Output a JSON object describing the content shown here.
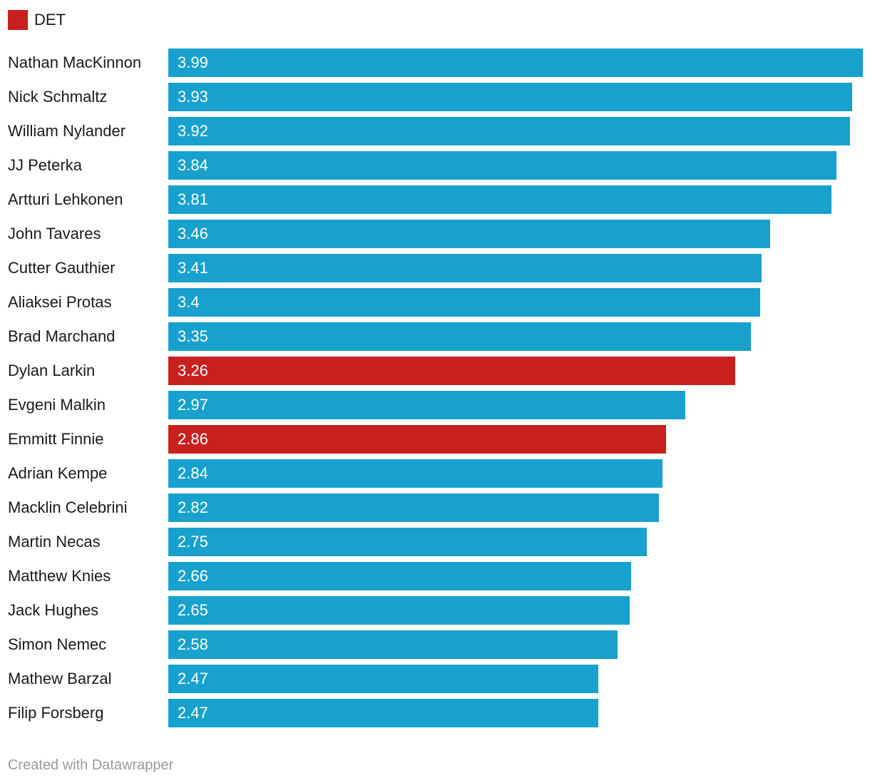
{
  "legend": {
    "label": "DET"
  },
  "footer": {
    "text": "Created with Datawrapper"
  },
  "colors": {
    "bar_default": "#18a1cd",
    "bar_highlight": "#c8201e",
    "label_text": "#1a1a1a",
    "value_text": "#ffffff",
    "footer_text": "#9a9a9a",
    "background": "#ffffff"
  },
  "chart_data": {
    "type": "bar",
    "orientation": "horizontal",
    "title": "",
    "legend_position": "top-left",
    "legend_entries": [
      {
        "label": "DET",
        "color": "#c8201e"
      }
    ],
    "grid": false,
    "xlim": [
      0,
      4.0
    ],
    "categories": [
      "Nathan MacKinnon",
      "Nick Schmaltz",
      "William Nylander",
      "JJ Peterka",
      "Artturi Lehkonen",
      "John Tavares",
      "Cutter Gauthier",
      "Aliaksei Protas",
      "Brad Marchand",
      "Dylan Larkin",
      "Evgeni Malkin",
      "Emmitt Finnie",
      "Adrian Kempe",
      "Macklin Celebrini",
      "Martin Necas",
      "Matthew Knies",
      "Jack Hughes",
      "Simon Nemec",
      "Mathew Barzal",
      "Filip Forsberg"
    ],
    "values": [
      3.99,
      3.93,
      3.92,
      3.84,
      3.81,
      3.46,
      3.41,
      3.4,
      3.35,
      3.26,
      2.97,
      2.86,
      2.84,
      2.82,
      2.75,
      2.66,
      2.65,
      2.58,
      2.47,
      2.47
    ],
    "value_labels": [
      "3.99",
      "3.93",
      "3.92",
      "3.84",
      "3.81",
      "3.46",
      "3.41",
      "3.4",
      "3.35",
      "3.26",
      "2.97",
      "2.86",
      "2.84",
      "2.82",
      "2.75",
      "2.66",
      "2.65",
      "2.58",
      "2.47",
      "2.47"
    ],
    "highlighted": [
      false,
      false,
      false,
      false,
      false,
      false,
      false,
      false,
      false,
      true,
      false,
      true,
      false,
      false,
      false,
      false,
      false,
      false,
      false,
      false
    ],
    "highlight_group": "DET"
  }
}
